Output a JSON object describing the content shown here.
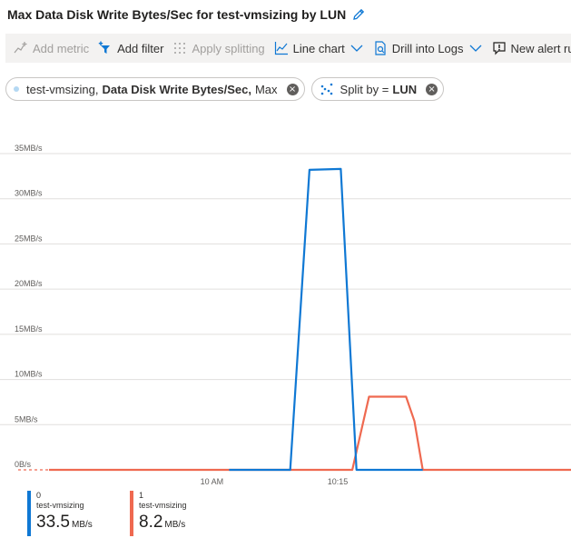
{
  "title": "Max Data Disk Write Bytes/Sec for test-vmsizing by LUN",
  "toolbar": {
    "add_metric": "Add metric",
    "add_filter": "Add filter",
    "apply_splitting": "Apply splitting",
    "line_chart": "Line chart",
    "drill_logs": "Drill into Logs",
    "new_alert": "New alert rule"
  },
  "pills": {
    "metric_resource": "test-vmsizing,",
    "metric_name": "Data Disk Write Bytes/Sec,",
    "metric_agg": "Max",
    "split_label": "Split by =",
    "split_value": "LUN"
  },
  "colors": {
    "series0": "#0f78d4",
    "series1": "#ef6950",
    "grid": "#e1dfdd",
    "axis_text": "#605e5c",
    "toolbar_bg": "#f3f2f1"
  },
  "chart_data": {
    "type": "line",
    "ylim": [
      0,
      35
    ],
    "yticks": [
      "0B/s",
      "5MB/s",
      "10MB/s",
      "15MB/s",
      "20MB/s",
      "25MB/s",
      "30MB/s",
      "35MB/s"
    ],
    "xlim": [
      0,
      100
    ],
    "xticks": [
      {
        "label": "10 AM",
        "x": 31.2
      },
      {
        "label": "10:15",
        "x": 55.3
      }
    ],
    "grid": true,
    "series": [
      {
        "name": "0",
        "color": "#0f78d4",
        "points": [
          [
            34.5,
            0
          ],
          [
            46.2,
            0
          ],
          [
            49.9,
            33.2
          ],
          [
            55.9,
            33.3
          ],
          [
            58.9,
            0
          ],
          [
            71.6,
            0
          ]
        ]
      },
      {
        "name": "1",
        "color": "#ef6950",
        "points": [
          [
            0,
            0
          ],
          [
            58.1,
            0
          ],
          [
            61.3,
            8.1
          ],
          [
            68.4,
            8.1
          ],
          [
            70.0,
            5.4
          ],
          [
            71.6,
            0
          ],
          [
            100,
            0
          ]
        ]
      }
    ],
    "dashed_baseline_end": 34.5
  },
  "legend": [
    {
      "lun": "0",
      "resource": "test-vmsizing",
      "value": "33.5",
      "unit": "MB/s",
      "color": "#0f78d4"
    },
    {
      "lun": "1",
      "resource": "test-vmsizing",
      "value": "8.2",
      "unit": "MB/s",
      "color": "#ef6950"
    }
  ]
}
